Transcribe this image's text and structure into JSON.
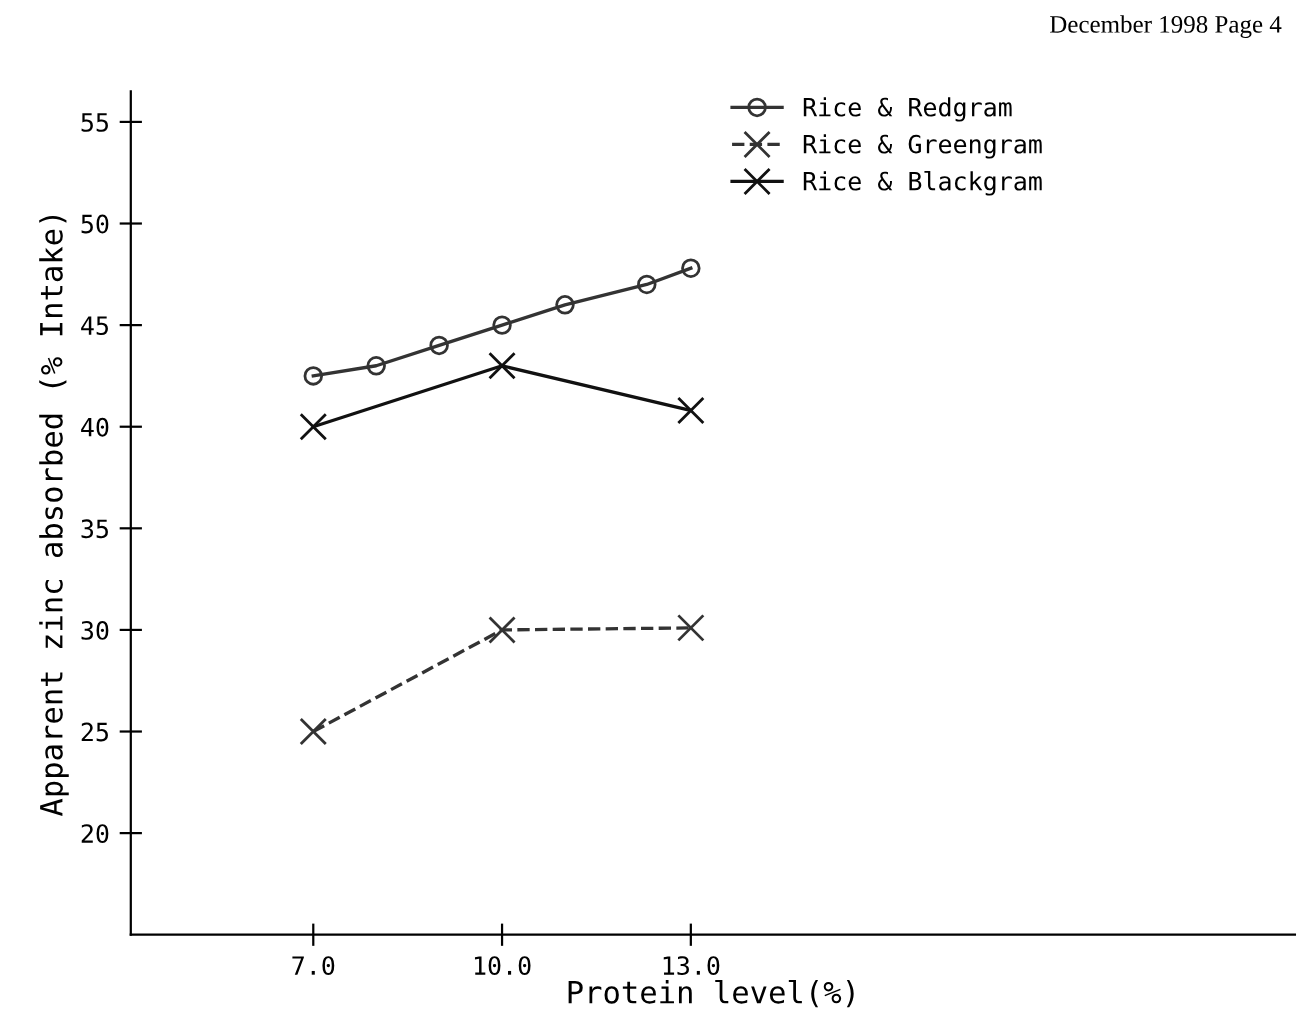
{
  "chart_data": {
    "type": "line",
    "xlabel": "Protein level(%)",
    "ylabel": "Apparent zinc absorbed (% Intake)",
    "annotations": [
      "December 1998 Page 4"
    ],
    "xlim": [
      4.1,
      22.6
    ],
    "xticks": [
      {
        "value": 7,
        "label": "7.0"
      },
      {
        "value": 10,
        "label": "10.0"
      },
      {
        "value": 13,
        "label": "13.0"
      }
    ],
    "ylim": [
      15,
      56.5
    ],
    "yticks": [
      20,
      25,
      30,
      35,
      40,
      45,
      50,
      55
    ],
    "grid": false,
    "legend": "top right",
    "series": [
      {
        "name": "Rice & Redgram",
        "color": "#333333",
        "x": [
          7,
          8,
          9,
          10,
          11,
          12.3,
          13
        ],
        "values": [
          42.5,
          43,
          44,
          45,
          46,
          47,
          47.8
        ],
        "marker": "circle",
        "line_style": "solid"
      },
      {
        "name": "Rice & Greengram",
        "color": "#333333",
        "x": [
          7,
          10,
          13
        ],
        "values": [
          25,
          30,
          30.1
        ],
        "marker": "cross",
        "line_style": "dashed"
      },
      {
        "name": "Rice & Blackgram",
        "color": "#111111",
        "x": [
          7,
          10,
          13
        ],
        "values": [
          40,
          43,
          40.8
        ],
        "marker": "cross",
        "line_style": "solid"
      }
    ]
  }
}
